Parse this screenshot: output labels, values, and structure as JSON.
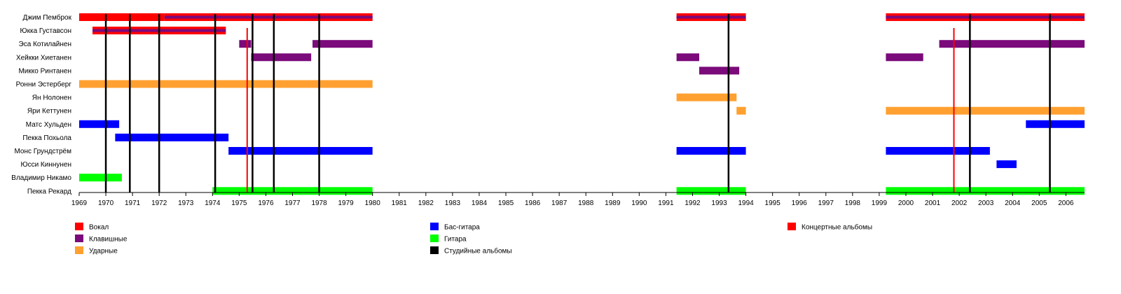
{
  "chart_data": {
    "type": "timeline",
    "xlim": [
      1969,
      2006.7
    ],
    "ticks": [
      1969,
      1970,
      1971,
      1972,
      1973,
      1974,
      1975,
      1976,
      1977,
      1978,
      1979,
      1980,
      1981,
      1982,
      1983,
      1984,
      1985,
      1986,
      1987,
      1988,
      1989,
      1990,
      1991,
      1992,
      1993,
      1994,
      1995,
      1996,
      1997,
      1998,
      1999,
      2000,
      2001,
      2002,
      2003,
      2004,
      2005,
      2006
    ],
    "legend": [
      {
        "key": "vocals",
        "label": "Вокал",
        "color": "#ff0000"
      },
      {
        "key": "keys",
        "label": "Клавишные",
        "color": "#7b0a7b"
      },
      {
        "key": "drums",
        "label": "Ударные",
        "color": "#ffa030"
      },
      {
        "key": "bass",
        "label": "Бас-гитара",
        "color": "#0000ff"
      },
      {
        "key": "guitar",
        "label": "Гитара",
        "color": "#00ff00"
      },
      {
        "key": "studio",
        "label": "Студийные альбомы",
        "color": "#000000"
      },
      {
        "key": "live",
        "label": "Концертные альбомы",
        "color": "#ff0000"
      }
    ],
    "members": [
      {
        "name": "Джим Пемброк",
        "periods": [
          {
            "start": 1969,
            "end": 1972.2,
            "role": "vocals"
          },
          {
            "start": 1972.2,
            "end": 1980,
            "role": "vocals+keys"
          },
          {
            "start": 1991.4,
            "end": 1994,
            "role": "vocals+keys"
          },
          {
            "start": 1999.25,
            "end": 2006.7,
            "role": "vocals+keys"
          }
        ]
      },
      {
        "name": "Юкка Густавсон",
        "periods": [
          {
            "start": 1969.5,
            "end": 1974.5,
            "role": "vocals+keys"
          }
        ]
      },
      {
        "name": "Эса Котилайнен",
        "periods": [
          {
            "start": 1975,
            "end": 1975.45,
            "role": "keys"
          },
          {
            "start": 1977.75,
            "end": 1980,
            "role": "keys"
          },
          {
            "start": 2001.25,
            "end": 2006.7,
            "role": "keys"
          }
        ]
      },
      {
        "name": "Хейкки Хиетанен",
        "periods": [
          {
            "start": 1975.45,
            "end": 1977.7,
            "role": "keys"
          },
          {
            "start": 1991.4,
            "end": 1992.25,
            "role": "keys"
          },
          {
            "start": 1999.25,
            "end": 2000.65,
            "role": "keys"
          }
        ]
      },
      {
        "name": "Микко Ринтанен",
        "periods": [
          {
            "start": 1992.25,
            "end": 1993.75,
            "role": "keys"
          }
        ]
      },
      {
        "name": "Ронни Эстерберг",
        "periods": [
          {
            "start": 1969,
            "end": 1980,
            "role": "drums"
          }
        ]
      },
      {
        "name": "Ян Нолонен",
        "periods": [
          {
            "start": 1991.4,
            "end": 1993.65,
            "role": "drums"
          }
        ]
      },
      {
        "name": "Яри Кеттунен",
        "periods": [
          {
            "start": 1993.65,
            "end": 1994,
            "role": "drums"
          },
          {
            "start": 1999.25,
            "end": 2006.7,
            "role": "drums"
          }
        ]
      },
      {
        "name": "Матс Хульден",
        "periods": [
          {
            "start": 1969,
            "end": 1970.5,
            "role": "bass"
          },
          {
            "start": 2004.5,
            "end": 2006.7,
            "role": "bass"
          }
        ]
      },
      {
        "name": "Пекка Похьола",
        "periods": [
          {
            "start": 1970.35,
            "end": 1974.6,
            "role": "bass"
          }
        ]
      },
      {
        "name": "Монс Грундстрём",
        "periods": [
          {
            "start": 1974.6,
            "end": 1980,
            "role": "bass"
          },
          {
            "start": 1991.4,
            "end": 1994,
            "role": "bass"
          },
          {
            "start": 1999.25,
            "end": 2003.15,
            "role": "bass"
          }
        ]
      },
      {
        "name": "Юсси Киннунен",
        "periods": [
          {
            "start": 2003.4,
            "end": 2004.15,
            "role": "bass"
          }
        ]
      },
      {
        "name": "Владимир Никамо",
        "periods": [
          {
            "start": 1969,
            "end": 1970.6,
            "role": "guitar"
          }
        ]
      },
      {
        "name": "Пекка Рекард",
        "periods": [
          {
            "start": 1974,
            "end": 1980,
            "role": "guitar"
          },
          {
            "start": 1991.4,
            "end": 1994,
            "role": "guitar"
          },
          {
            "start": 1999.25,
            "end": 2006.7,
            "role": "guitar"
          }
        ]
      }
    ],
    "studio_albums": [
      1970,
      1970.9,
      1972,
      1974.1,
      1975.5,
      1976.3,
      1978,
      1993.35,
      2002.4,
      2005.4
    ],
    "live_albums": [
      1975.3,
      2001.8
    ]
  }
}
